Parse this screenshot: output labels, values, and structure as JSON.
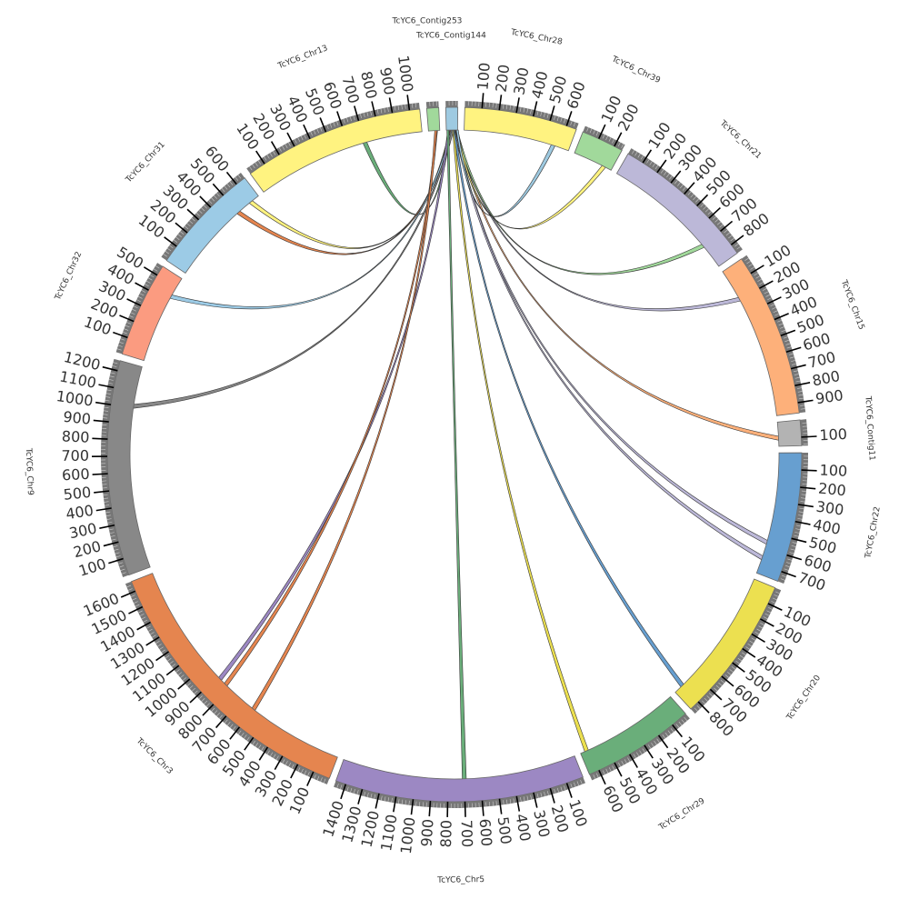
{
  "chart_data": {
    "type": "circos",
    "title": "",
    "tick_major_interval": 100,
    "tick_minor_interval": 20,
    "segments": [
      {
        "name": "TcYC6_Contig253",
        "length": 70,
        "color": "#a1d99b"
      },
      {
        "name": "TcYC6_Contig144",
        "length": 70,
        "color": "#9ecae1"
      },
      {
        "name": "TcYC6_Chr28",
        "length": 660,
        "color": "#fff380"
      },
      {
        "name": "TcYC6_Chr39",
        "length": 250,
        "color": "#a1d99b"
      },
      {
        "name": "TcYC6_Chr21",
        "length": 860,
        "color": "#bcb8d8"
      },
      {
        "name": "TcYC6_Chr15",
        "length": 960,
        "color": "#fdb07a"
      },
      {
        "name": "TcYC6_Contig11",
        "length": 150,
        "color": "#b3b3b3"
      },
      {
        "name": "TcYC6_Chr22",
        "length": 760,
        "color": "#679fd0"
      },
      {
        "name": "TcYC6_Chr20",
        "length": 860,
        "color": "#ece050"
      },
      {
        "name": "TcYC6_Chr29",
        "length": 660,
        "color": "#6aae7a"
      },
      {
        "name": "TcYC6_Chr5",
        "length": 1460,
        "color": "#9c88c3"
      },
      {
        "name": "TcYC6_Chr3",
        "length": 1660,
        "color": "#e5854f"
      },
      {
        "name": "TcYC6_Chr9",
        "length": 1260,
        "color": "#888888"
      },
      {
        "name": "TcYC6_Chr32",
        "length": 560,
        "color": "#fb9b80"
      },
      {
        "name": "TcYC6_Chr31",
        "length": 660,
        "color": "#9ccbe6"
      },
      {
        "name": "TcYC6_Chr13",
        "length": 1060,
        "color": "#fff380"
      }
    ],
    "links": [
      {
        "from": "TcYC6_Chr13",
        "pos": 700,
        "to": "TcYC6_Contig144",
        "to_pos": 20,
        "color": "#6aae7a"
      },
      {
        "from": "TcYC6_Chr31",
        "pos": 600,
        "to": "TcYC6_Contig144",
        "to_pos": 25,
        "color": "#fff380"
      },
      {
        "from": "TcYC6_Chr31",
        "pos": 500,
        "to": "TcYC6_Contig144",
        "to_pos": 30,
        "color": "#e5854f"
      },
      {
        "from": "TcYC6_Chr32",
        "pos": 430,
        "to": "TcYC6_Contig144",
        "to_pos": 35,
        "color": "#9ccbe6"
      },
      {
        "from": "TcYC6_Chr9",
        "pos": 1010,
        "to": "TcYC6_Contig144",
        "to_pos": 40,
        "color": "#888888"
      },
      {
        "from": "TcYC6_Chr3",
        "pos": 880,
        "to": "TcYC6_Contig144",
        "to_pos": 15,
        "color": "#9c88c3"
      },
      {
        "from": "TcYC6_Chr3",
        "pos": 830,
        "to": "TcYC6_Contig253",
        "to_pos": 50,
        "color": "#e5854f"
      },
      {
        "from": "TcYC6_Chr3",
        "pos": 600,
        "to": "TcYC6_Contig253",
        "to_pos": 45,
        "color": "#e5854f"
      },
      {
        "from": "TcYC6_Chr5",
        "pos": 700,
        "to": "TcYC6_Contig144",
        "to_pos": 10,
        "color": "#6aae7a"
      },
      {
        "from": "TcYC6_Chr29",
        "pos": 620,
        "to": "TcYC6_Contig144",
        "to_pos": 45,
        "color": "#ece050"
      },
      {
        "from": "TcYC6_Chr20",
        "pos": 800,
        "to": "TcYC6_Contig144",
        "to_pos": 50,
        "color": "#679fd0"
      },
      {
        "from": "TcYC6_Chr22",
        "pos": 560,
        "to": "TcYC6_Contig144",
        "to_pos": 55,
        "color": "#bcb8d8"
      },
      {
        "from": "TcYC6_Chr22",
        "pos": 660,
        "to": "TcYC6_Contig144",
        "to_pos": 58,
        "color": "#bcb8d8"
      },
      {
        "from": "TcYC6_Contig11",
        "pos": 100,
        "to": "TcYC6_Contig144",
        "to_pos": 60,
        "color": "#fdb07a"
      },
      {
        "from": "TcYC6_Chr15",
        "pos": 200,
        "to": "TcYC6_Contig144",
        "to_pos": 62,
        "color": "#bcb8d8"
      },
      {
        "from": "TcYC6_Chr21",
        "pos": 700,
        "to": "TcYC6_Contig144",
        "to_pos": 64,
        "color": "#a1d99b"
      },
      {
        "from": "TcYC6_Chr39",
        "pos": 200,
        "to": "TcYC6_Contig144",
        "to_pos": 66,
        "color": "#fff380"
      },
      {
        "from": "TcYC6_Chr28",
        "pos": 560,
        "to": "TcYC6_Contig144",
        "to_pos": 68,
        "color": "#9ecae1"
      }
    ]
  }
}
